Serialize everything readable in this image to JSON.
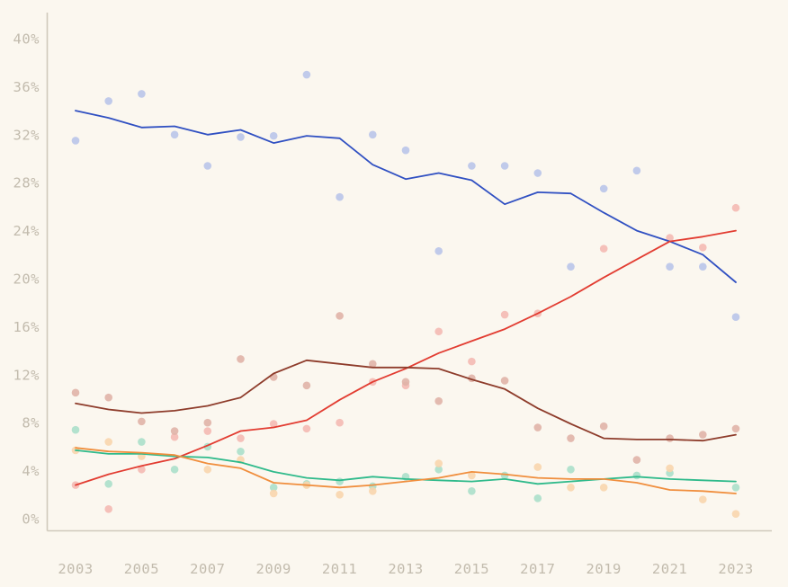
{
  "figure": {
    "title": "",
    "background_color": "#fbf7ef",
    "axis_color": "#d0c9bb",
    "tick_label_color": "#c2bbad"
  },
  "chart_data": {
    "type": "line",
    "x": [
      2003,
      2004,
      2005,
      2006,
      2007,
      2008,
      2009,
      2010,
      2011,
      2012,
      2013,
      2014,
      2015,
      2016,
      2017,
      2018,
      2019,
      2020,
      2021,
      2022,
      2023
    ],
    "x_tick_labels": [
      "2003",
      "2005",
      "2007",
      "2009",
      "2011",
      "2013",
      "2015",
      "2017",
      "2019",
      "2021",
      "2023"
    ],
    "x_tick_years": [
      2003,
      2005,
      2007,
      2009,
      2011,
      2013,
      2015,
      2017,
      2019,
      2021,
      2023
    ],
    "y_ticks": [
      0,
      4,
      8,
      12,
      16,
      20,
      24,
      28,
      32,
      36,
      40
    ],
    "y_tick_suffix": "%",
    "ylim": [
      0,
      42
    ],
    "xlabel": "",
    "ylabel": "",
    "grid": false,
    "legend": "none",
    "series": [
      {
        "name": "blue",
        "color": "#3050c2",
        "point_color": "#b9c4e9",
        "values": [
          34.0,
          33.4,
          32.6,
          32.7,
          32.0,
          32.4,
          31.3,
          31.9,
          31.7,
          29.5,
          28.3,
          28.8,
          28.2,
          26.2,
          27.2,
          27.1,
          25.5,
          24.0,
          23.1,
          22.0,
          19.7
        ],
        "points": [
          [
            2003,
            31.5
          ],
          [
            2004,
            34.8
          ],
          [
            2005,
            35.4
          ],
          [
            2006,
            32.0
          ],
          [
            2007,
            29.4
          ],
          [
            2008,
            31.8
          ],
          [
            2009,
            31.9
          ],
          [
            2010,
            37.0
          ],
          [
            2011,
            26.8
          ],
          [
            2012,
            32.0
          ],
          [
            2013,
            30.7
          ],
          [
            2014,
            22.3
          ],
          [
            2015,
            29.4
          ],
          [
            2016,
            29.4
          ],
          [
            2017,
            28.8
          ],
          [
            2018,
            21.0
          ],
          [
            2019,
            27.5
          ],
          [
            2020,
            29.0
          ],
          [
            2021,
            21.0
          ],
          [
            2022,
            21.0
          ],
          [
            2023,
            16.8
          ]
        ]
      },
      {
        "name": "red",
        "color": "#e23c31",
        "point_color": "#f4b9b3",
        "values": [
          2.8,
          3.7,
          4.4,
          5.0,
          6.1,
          7.3,
          7.6,
          8.2,
          9.9,
          11.4,
          12.5,
          13.8,
          14.8,
          15.8,
          17.1,
          18.5,
          20.1,
          21.6,
          23.1,
          23.5,
          24.0
        ],
        "points": [
          [
            2003,
            2.8
          ],
          [
            2004,
            0.8
          ],
          [
            2005,
            4.1
          ],
          [
            2006,
            6.8
          ],
          [
            2007,
            7.3
          ],
          [
            2008,
            6.7
          ],
          [
            2009,
            7.9
          ],
          [
            2010,
            7.5
          ],
          [
            2011,
            8.0
          ],
          [
            2012,
            11.4
          ],
          [
            2013,
            11.1
          ],
          [
            2014,
            15.6
          ],
          [
            2015,
            13.1
          ],
          [
            2016,
            17.0
          ],
          [
            2017,
            17.1
          ],
          [
            2019,
            22.5
          ],
          [
            2021,
            23.4
          ],
          [
            2022,
            22.6
          ],
          [
            2023,
            25.9
          ]
        ]
      },
      {
        "name": "dark-red",
        "color": "#8e3c2b",
        "point_color": "#e0b2a7",
        "values": [
          9.6,
          9.1,
          8.8,
          9.0,
          9.4,
          10.1,
          12.1,
          13.2,
          12.9,
          12.6,
          12.6,
          12.5,
          11.6,
          10.8,
          9.2,
          7.9,
          6.7,
          6.6,
          6.6,
          6.5,
          7.0
        ],
        "points": [
          [
            2003,
            10.5
          ],
          [
            2004,
            10.1
          ],
          [
            2005,
            8.1
          ],
          [
            2006,
            7.3
          ],
          [
            2007,
            8.0
          ],
          [
            2008,
            13.3
          ],
          [
            2009,
            11.8
          ],
          [
            2010,
            11.1
          ],
          [
            2011,
            16.9
          ],
          [
            2012,
            12.9
          ],
          [
            2013,
            11.4
          ],
          [
            2014,
            9.8
          ],
          [
            2015,
            11.7
          ],
          [
            2016,
            11.5
          ],
          [
            2017,
            7.6
          ],
          [
            2018,
            6.7
          ],
          [
            2019,
            7.7
          ],
          [
            2020,
            4.9
          ],
          [
            2021,
            6.7
          ],
          [
            2022,
            7.0
          ],
          [
            2023,
            7.5
          ]
        ]
      },
      {
        "name": "green",
        "color": "#2fba8b",
        "point_color": "#abdfca",
        "values": [
          5.7,
          5.4,
          5.4,
          5.2,
          5.1,
          4.7,
          3.9,
          3.4,
          3.2,
          3.5,
          3.3,
          3.2,
          3.1,
          3.3,
          2.9,
          3.1,
          3.3,
          3.5,
          3.3,
          3.2,
          3.1
        ],
        "points": [
          [
            2003,
            7.4
          ],
          [
            2004,
            2.9
          ],
          [
            2005,
            6.4
          ],
          [
            2006,
            4.1
          ],
          [
            2007,
            6.0
          ],
          [
            2008,
            5.6
          ],
          [
            2009,
            2.6
          ],
          [
            2010,
            2.9
          ],
          [
            2011,
            3.1
          ],
          [
            2012,
            2.7
          ],
          [
            2013,
            3.5
          ],
          [
            2014,
            4.1
          ],
          [
            2015,
            2.3
          ],
          [
            2016,
            3.6
          ],
          [
            2017,
            1.7
          ],
          [
            2018,
            4.1
          ],
          [
            2020,
            3.6
          ],
          [
            2021,
            3.8
          ],
          [
            2023,
            2.6
          ]
        ]
      },
      {
        "name": "orange",
        "color": "#f08e3d",
        "point_color": "#f8d5ad",
        "values": [
          5.9,
          5.6,
          5.5,
          5.3,
          4.6,
          4.2,
          3.0,
          2.8,
          2.6,
          2.8,
          3.1,
          3.4,
          3.9,
          3.7,
          3.4,
          3.3,
          3.3,
          3.0,
          2.4,
          2.3,
          2.1
        ],
        "points": [
          [
            2003,
            5.7
          ],
          [
            2004,
            6.4
          ],
          [
            2005,
            5.2
          ],
          [
            2007,
            4.1
          ],
          [
            2008,
            4.9
          ],
          [
            2009,
            2.1
          ],
          [
            2010,
            2.8
          ],
          [
            2011,
            2.0
          ],
          [
            2012,
            2.3
          ],
          [
            2014,
            4.6
          ],
          [
            2015,
            3.6
          ],
          [
            2017,
            4.3
          ],
          [
            2018,
            2.6
          ],
          [
            2019,
            2.6
          ],
          [
            2021,
            4.2
          ],
          [
            2022,
            1.6
          ],
          [
            2023,
            0.4
          ]
        ]
      }
    ]
  }
}
